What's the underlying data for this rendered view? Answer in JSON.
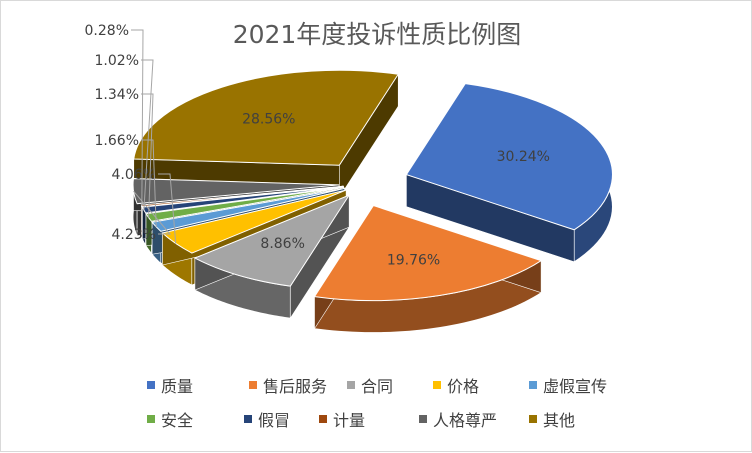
{
  "chart_data": {
    "type": "pie",
    "title": "2021年度投诉性质比例图",
    "categories": [
      "质量",
      "售后服务",
      "合同",
      "价格",
      "虚假宣传",
      "安全",
      "假冒",
      "计量",
      "人格尊严",
      "其他"
    ],
    "values": [
      30.24,
      19.76,
      8.86,
      4.06,
      1.66,
      1.34,
      1.02,
      0.28,
      4.23,
      28.56
    ],
    "data_labels": [
      "30.24%",
      "19.76%",
      "8.86%",
      "4.06%",
      "1.66%",
      "1.34%",
      "1.02%",
      "0.28%",
      "4.23%",
      "28.56%"
    ],
    "colors": [
      "#4472c4",
      "#ed7d31",
      "#a5a5a5",
      "#ffc000",
      "#5b9bd5",
      "#70ad47",
      "#264478",
      "#9e480e",
      "#636363",
      "#997300"
    ],
    "style": "3d-exploded",
    "legend": "bottom"
  }
}
